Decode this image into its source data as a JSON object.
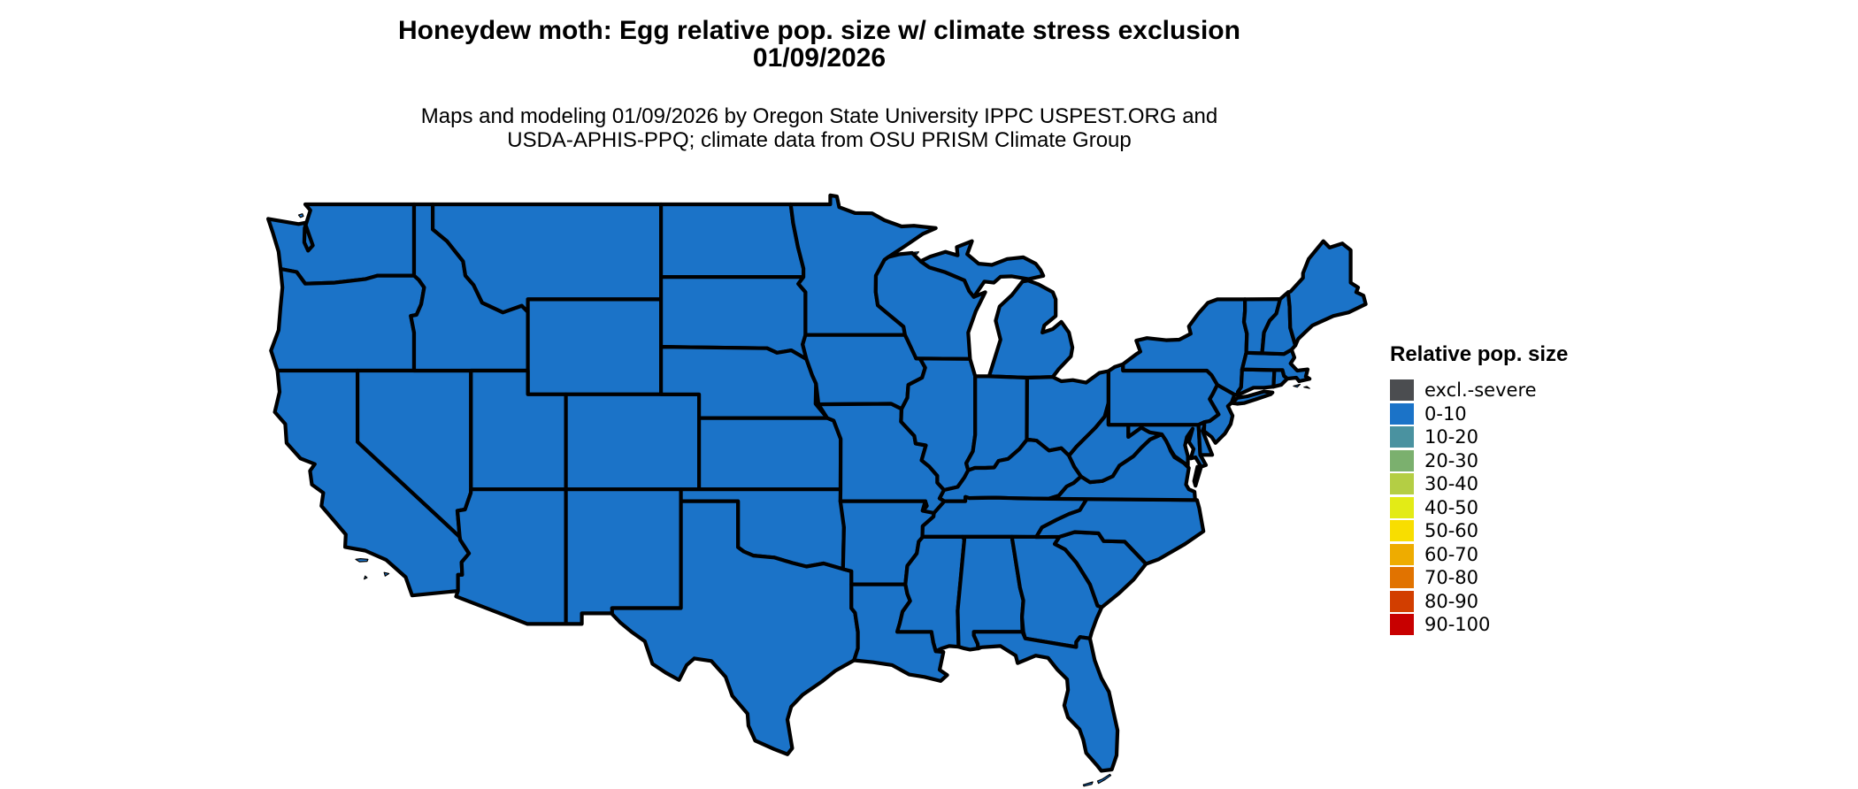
{
  "title": {
    "line1": "Honeydew moth: Egg relative pop. size w/ climate stress exclusion",
    "line2": "01/09/2026"
  },
  "subtitle": {
    "line1": "Maps and modeling 01/09/2026 by Oregon State University IPPC USPEST.ORG and",
    "line2": "USDA-APHIS-PPQ; climate data from OSU PRISM Climate Group"
  },
  "legend": {
    "title": "Relative pop. size",
    "items": [
      {
        "label": "excl.-severe",
        "color": "#4B4D50"
      },
      {
        "label": "0-10",
        "color": "#1B73C8"
      },
      {
        "label": "10-20",
        "color": "#4A92A0"
      },
      {
        "label": "20-30",
        "color": "#7BB06E"
      },
      {
        "label": "30-40",
        "color": "#B4CE44"
      },
      {
        "label": "40-50",
        "color": "#E3EB16"
      },
      {
        "label": "50-60",
        "color": "#F8DE00"
      },
      {
        "label": "60-70",
        "color": "#EEAC00"
      },
      {
        "label": "70-80",
        "color": "#E17300"
      },
      {
        "label": "80-90",
        "color": "#D23E00"
      },
      {
        "label": "90-100",
        "color": "#C80000"
      }
    ]
  },
  "map": {
    "region": "Conterminous United States state choropleth",
    "uniform_category": "0-10",
    "fill_color": "#1B73C8",
    "border_color": "#000000",
    "background_color": "#FFFFFF"
  }
}
